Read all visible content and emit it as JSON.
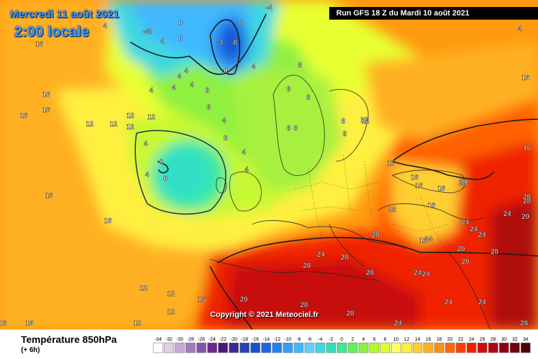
{
  "header": {
    "date_line": "Mercredi 11 août 2021",
    "time_line": "2:00 locale",
    "run_info": "Run GFS 18 Z du Mardi 10 août 2021"
  },
  "footer": {
    "copyright": "Copyright © 2021 Meteociel.fr",
    "parameter": "Température 850hPa",
    "offset": "(+ 6h)"
  },
  "legend": {
    "labels": [
      "-34",
      "-32",
      "-30",
      "-28",
      "-26",
      "-24",
      "-22",
      "-20",
      "-18",
      "-16",
      "-14",
      "-12",
      "-10",
      "-8",
      "-6",
      "-4",
      "-2",
      "0",
      "2",
      "4",
      "6",
      "8",
      "10",
      "12",
      "14",
      "16",
      "18",
      "20",
      "22",
      "24",
      "26",
      "28",
      "30",
      "32",
      "34"
    ],
    "colors": [
      "#ffffff",
      "#e0d0e8",
      "#c8a8d8",
      "#a878c0",
      "#8850a8",
      "#6a2890",
      "#4a1878",
      "#3a2898",
      "#2840b8",
      "#1850d0",
      "#1868e0",
      "#2080f0",
      "#30a0f8",
      "#40b8ff",
      "#60d0ff",
      "#40d8e0",
      "#30e0b8",
      "#40e890",
      "#60f060",
      "#90f040",
      "#b8f830",
      "#e0ff30",
      "#ffff60",
      "#fff040",
      "#ffd030",
      "#ffb020",
      "#ff9010",
      "#ff6800",
      "#ff4000",
      "#f02000",
      "#d01008",
      "#b00810",
      "#900010",
      "#700010",
      "#500008"
    ]
  },
  "isotherm_labels": [
    {
      "t": "-4"
    },
    {
      "t": "0"
    },
    {
      "t": "0"
    },
    {
      "t": "4"
    },
    {
      "t": "4"
    },
    {
      "t": "0"
    },
    {
      "t": "-4"
    },
    {
      "t": "-8"
    },
    {
      "t": "0"
    },
    {
      "t": "-4"
    },
    {
      "t": "4"
    },
    {
      "t": "16"
    },
    {
      "t": "4"
    },
    {
      "t": "8"
    },
    {
      "t": "4"
    },
    {
      "t": "8"
    },
    {
      "t": "8"
    },
    {
      "t": "8"
    },
    {
      "t": "16"
    },
    {
      "t": "16"
    },
    {
      "t": "16"
    },
    {
      "t": "12"
    },
    {
      "t": "12"
    },
    {
      "t": "12"
    },
    {
      "t": "12"
    },
    {
      "t": "12"
    },
    {
      "t": "4"
    },
    {
      "t": "4"
    },
    {
      "t": "4"
    },
    {
      "t": "8"
    },
    {
      "t": "8"
    },
    {
      "t": "4"
    },
    {
      "t": "4"
    },
    {
      "t": "0"
    },
    {
      "t": "0"
    },
    {
      "t": "4"
    },
    {
      "t": "4"
    },
    {
      "t": "4"
    },
    {
      "t": "8"
    },
    {
      "t": "8"
    },
    {
      "t": "12"
    },
    {
      "t": "16"
    },
    {
      "t": "16"
    },
    {
      "t": "16"
    },
    {
      "t": "16"
    },
    {
      "t": "16"
    },
    {
      "t": "16"
    },
    {
      "t": "16"
    },
    {
      "t": "16"
    },
    {
      "t": "20"
    },
    {
      "t": "20"
    },
    {
      "t": "24"
    },
    {
      "t": "24"
    },
    {
      "t": "24"
    },
    {
      "t": "24"
    },
    {
      "t": "28"
    },
    {
      "t": "28"
    },
    {
      "t": "28"
    },
    {
      "t": "28"
    },
    {
      "t": "24"
    },
    {
      "t": "24"
    },
    {
      "t": "20"
    },
    {
      "t": "20"
    },
    {
      "t": "20"
    },
    {
      "t": "24"
    },
    {
      "t": "28"
    },
    {
      "t": "28"
    },
    {
      "t": "24"
    },
    {
      "t": "28"
    },
    {
      "t": "12"
    },
    {
      "t": "12"
    },
    {
      "t": "12"
    },
    {
      "t": "16"
    },
    {
      "t": "16"
    },
    {
      "t": "12"
    },
    {
      "t": "16"
    },
    {
      "t": "20"
    },
    {
      "t": "24"
    },
    {
      "t": "28"
    },
    {
      "t": "28"
    },
    {
      "t": "24"
    },
    {
      "t": "28"
    },
    {
      "t": "20"
    },
    {
      "t": "24"
    },
    {
      "t": "4"
    },
    {
      "t": "16"
    },
    {
      "t": "16"
    },
    {
      "t": "8"
    },
    {
      "t": "8"
    },
    {
      "t": "12"
    },
    {
      "t": "-4"
    }
  ]
}
